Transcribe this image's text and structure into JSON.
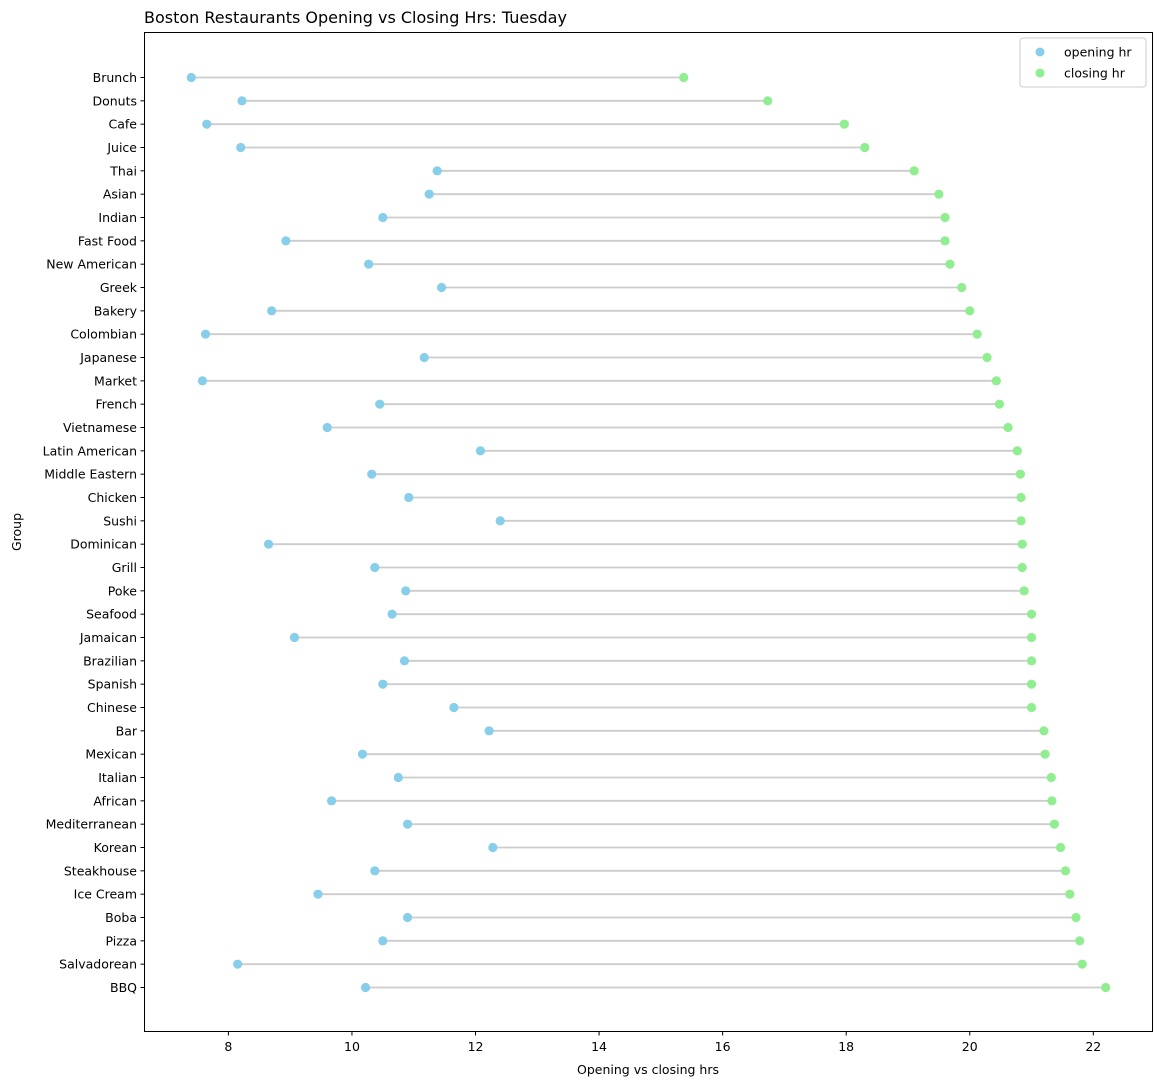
{
  "chart_data": {
    "type": "dumbbell",
    "title": "Boston Restaurants Opening vs Closing Hrs: Tuesday",
    "xlabel": "Opening vs closing hrs",
    "ylabel": "Group",
    "xlim": [
      6.65,
      22.95
    ],
    "xticks": [
      8,
      10,
      12,
      14,
      16,
      18,
      20,
      22
    ],
    "grid": false,
    "legend_position": "top-right",
    "colors": {
      "opening": "#87ceeb",
      "closing": "#90ee90",
      "connector": "#cccccc"
    },
    "series": [
      {
        "name": "opening hr",
        "key": "open"
      },
      {
        "name": "closing hr",
        "key": "close"
      }
    ],
    "categories": [
      "Brunch",
      "Donuts",
      "Cafe",
      "Juice",
      "Thai",
      "Asian",
      "Indian",
      "Fast Food",
      "New American",
      "Greek",
      "Bakery",
      "Colombian",
      "Japanese",
      "Market",
      "French",
      "Vietnamese",
      "Latin American",
      "Middle Eastern",
      "Chicken",
      "Sushi",
      "Dominican",
      "Grill",
      "Poke",
      "Seafood",
      "Jamaican",
      "Brazilian",
      "Spanish",
      "Chinese",
      "Bar",
      "Mexican",
      "Italian",
      "African",
      "Mediterranean",
      "Korean",
      "Steakhouse",
      "Ice Cream",
      "Boba",
      "Pizza",
      "Salvadorean",
      "BBQ"
    ],
    "open": [
      7.4,
      8.22,
      7.65,
      8.2,
      11.38,
      11.25,
      10.5,
      8.93,
      10.27,
      11.45,
      8.7,
      7.63,
      11.17,
      7.58,
      10.45,
      9.6,
      12.08,
      10.32,
      10.92,
      12.4,
      8.65,
      10.37,
      10.87,
      10.65,
      9.07,
      10.85,
      10.5,
      11.65,
      12.22,
      10.17,
      10.75,
      9.67,
      10.9,
      12.28,
      10.37,
      9.45,
      10.9,
      10.5,
      8.15,
      10.22
    ],
    "close": [
      15.37,
      16.73,
      17.97,
      18.3,
      19.1,
      19.5,
      19.6,
      19.6,
      19.68,
      19.87,
      20.0,
      20.12,
      20.28,
      20.43,
      20.48,
      20.62,
      20.77,
      20.82,
      20.83,
      20.83,
      20.85,
      20.85,
      20.88,
      21.0,
      21.0,
      21.0,
      21.0,
      21.0,
      21.2,
      21.22,
      21.32,
      21.33,
      21.37,
      21.47,
      21.55,
      21.62,
      21.72,
      21.78,
      21.82,
      22.2
    ]
  }
}
